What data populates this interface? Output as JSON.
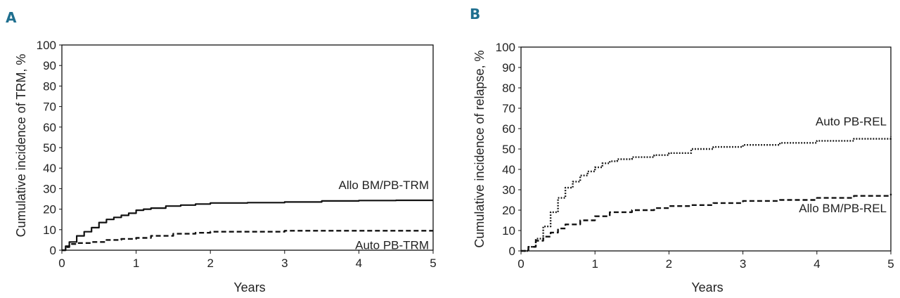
{
  "chart_data": [
    {
      "type": "line",
      "panel_label": "A",
      "xlabel": "Years",
      "ylabel": "Cumulative incidence of TRM, %",
      "xlim": [
        0,
        5
      ],
      "ylim": [
        0,
        100
      ],
      "x_ticks": [
        0,
        1,
        2,
        3,
        4,
        5
      ],
      "y_ticks": [
        0,
        10,
        20,
        30,
        40,
        50,
        60,
        70,
        80,
        90,
        100
      ],
      "grid": false,
      "legend": "inline labels near line ends",
      "series": [
        {
          "name": "Allo BM/PB-TRM",
          "style": "solid",
          "color": "#111111",
          "label_pos": "above",
          "x": [
            0,
            0.05,
            0.1,
            0.2,
            0.3,
            0.4,
            0.5,
            0.6,
            0.7,
            0.8,
            0.9,
            1.0,
            1.1,
            1.2,
            1.4,
            1.6,
            1.8,
            2.0,
            2.5,
            3.0,
            3.5,
            4.0,
            4.5,
            5.0
          ],
          "y": [
            0,
            2,
            4,
            7,
            9,
            11,
            13.5,
            15,
            16,
            17,
            18,
            19.5,
            20,
            20.5,
            21.5,
            22,
            22.5,
            23,
            23.2,
            23.5,
            24,
            24.2,
            24.3,
            24.3
          ]
        },
        {
          "name": "Auto PB-TRM",
          "style": "dashed",
          "color": "#111111",
          "label_pos": "below",
          "x": [
            0,
            0.05,
            0.1,
            0.2,
            0.4,
            0.6,
            0.8,
            1.0,
            1.2,
            1.5,
            1.8,
            2.0,
            2.5,
            3.0,
            3.5,
            4.0,
            4.5,
            5.0
          ],
          "y": [
            0,
            1.5,
            3,
            3.5,
            4,
            5,
            5.5,
            6,
            7,
            8,
            8.5,
            9,
            9,
            9.5,
            9.5,
            9.5,
            9.5,
            9.5
          ]
        }
      ]
    },
    {
      "type": "line",
      "panel_label": "B",
      "xlabel": "Years",
      "ylabel": "Cumulative incidence of relapse, %",
      "xlim": [
        0,
        5
      ],
      "ylim": [
        0,
        100
      ],
      "x_ticks": [
        0,
        1,
        2,
        3,
        4,
        5
      ],
      "y_ticks": [
        0,
        10,
        20,
        30,
        40,
        50,
        60,
        70,
        80,
        90,
        100
      ],
      "grid": false,
      "legend": "inline labels near line ends",
      "series": [
        {
          "name": "Auto PB-REL",
          "style": "dotted",
          "color": "#111111",
          "label_pos": "above",
          "x": [
            0,
            0.1,
            0.2,
            0.3,
            0.4,
            0.5,
            0.6,
            0.7,
            0.8,
            0.9,
            1.0,
            1.1,
            1.2,
            1.3,
            1.5,
            1.8,
            2.0,
            2.3,
            2.6,
            3.0,
            3.5,
            4.0,
            4.5,
            5.0
          ],
          "y": [
            0,
            2,
            6,
            12,
            19,
            26,
            31,
            34,
            37,
            39,
            41,
            43,
            44,
            45,
            46,
            47,
            48,
            50,
            51,
            52,
            53,
            54,
            55,
            56
          ]
        },
        {
          "name": "Allo BM/PB-REL",
          "style": "dashed",
          "color": "#111111",
          "label_pos": "below",
          "x": [
            0,
            0.1,
            0.2,
            0.3,
            0.4,
            0.5,
            0.6,
            0.8,
            1.0,
            1.2,
            1.5,
            1.8,
            2.0,
            2.3,
            2.6,
            3.0,
            3.5,
            4.0,
            4.5,
            5.0
          ],
          "y": [
            0,
            2,
            5,
            7,
            9,
            11,
            13,
            15,
            17,
            19,
            20,
            21,
            22,
            22.5,
            23.5,
            24.5,
            25,
            26,
            27,
            28
          ]
        }
      ]
    }
  ]
}
